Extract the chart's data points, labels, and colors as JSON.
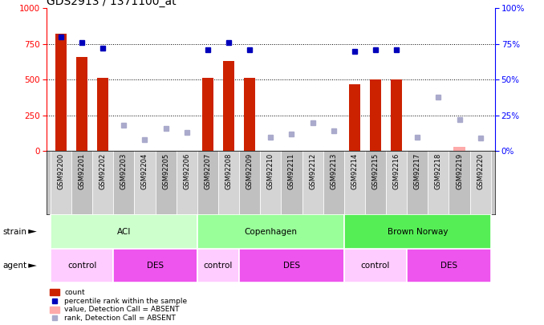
{
  "title": "GDS2913 / 1371100_at",
  "samples": [
    "GSM92200",
    "GSM92201",
    "GSM92202",
    "GSM92203",
    "GSM92204",
    "GSM92205",
    "GSM92206",
    "GSM92207",
    "GSM92208",
    "GSM92209",
    "GSM92210",
    "GSM92211",
    "GSM92212",
    "GSM92213",
    "GSM92214",
    "GSM92215",
    "GSM92216",
    "GSM92217",
    "GSM92218",
    "GSM92219",
    "GSM92220"
  ],
  "count_present": [
    820,
    660,
    510,
    0,
    0,
    0,
    0,
    510,
    630,
    510,
    0,
    0,
    0,
    0,
    470,
    500,
    500,
    0,
    0,
    0,
    0
  ],
  "count_absent": [
    0,
    0,
    0,
    0,
    0,
    0,
    0,
    0,
    0,
    0,
    0,
    0,
    0,
    0,
    0,
    0,
    0,
    0,
    0,
    28,
    0
  ],
  "rank_present": [
    80,
    76,
    72,
    -1,
    -1,
    -1,
    -1,
    71,
    76,
    71,
    -1,
    -1,
    -1,
    -1,
    70,
    71,
    71,
    -1,
    -1,
    -1,
    -1
  ],
  "rank_absent": [
    -1,
    -1,
    -1,
    18,
    8,
    16,
    13,
    -1,
    -1,
    -1,
    10,
    12,
    20,
    14,
    -1,
    -1,
    -1,
    10,
    38,
    22,
    9
  ],
  "strain_groups": [
    {
      "label": "ACI",
      "start": 0,
      "end": 7,
      "color": "#ccffcc"
    },
    {
      "label": "Copenhagen",
      "start": 7,
      "end": 14,
      "color": "#99ff99"
    },
    {
      "label": "Brown Norway",
      "start": 14,
      "end": 21,
      "color": "#55ee55"
    }
  ],
  "agent_groups": [
    {
      "label": "control",
      "start": 0,
      "end": 3,
      "color": "#ffccff"
    },
    {
      "label": "DES",
      "start": 3,
      "end": 7,
      "color": "#ee55ee"
    },
    {
      "label": "control",
      "start": 7,
      "end": 9,
      "color": "#ffccff"
    },
    {
      "label": "DES",
      "start": 9,
      "end": 14,
      "color": "#ee55ee"
    },
    {
      "label": "control",
      "start": 14,
      "end": 17,
      "color": "#ffccff"
    },
    {
      "label": "DES",
      "start": 17,
      "end": 21,
      "color": "#ee55ee"
    }
  ],
  "bar_color_present": "#cc2200",
  "bar_color_absent": "#ffaaaa",
  "rank_color_present": "#0000bb",
  "rank_color_absent": "#aaaacc",
  "bg_color": "#ffffff",
  "tick_area_bg": "#c8c8c8",
  "left_yticks": [
    0,
    250,
    500,
    750,
    1000
  ],
  "right_yticks": [
    0,
    25,
    50,
    75,
    100
  ],
  "title_fontsize": 10,
  "tick_fontsize": 6,
  "label_fontsize": 7.5,
  "row_label_fontsize": 7.5
}
